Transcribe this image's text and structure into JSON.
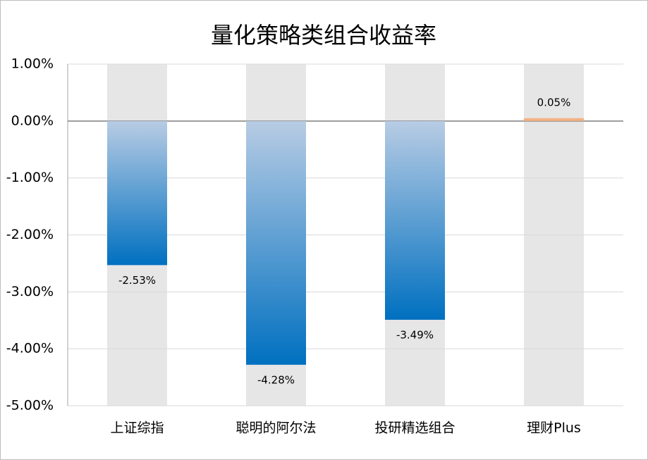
{
  "chart_data": {
    "type": "bar",
    "title": "量化策略类组合收益率",
    "categories": [
      "上证综指",
      "聪明的阿尔法",
      "投研精选组合",
      "理财Plus"
    ],
    "values": [
      -2.53,
      -4.28,
      -3.49,
      0.05
    ],
    "value_labels": [
      "-2.53%",
      "-4.28%",
      "-3.49%",
      "0.05%"
    ],
    "color": "#0070c0",
    "gradient_top_color": "#b8cce4",
    "positive_color": "#f4b183",
    "background_bar_color": "#e7e6e6",
    "ylim": [
      -5,
      1
    ],
    "yticks": [
      {
        "value": 1,
        "label": "1.00%"
      },
      {
        "value": 0,
        "label": "0.00%"
      },
      {
        "value": -1,
        "label": "-1.00%"
      },
      {
        "value": -2,
        "label": "-2.00%"
      },
      {
        "value": -3,
        "label": "-3.00%"
      },
      {
        "value": -4,
        "label": "-4.00%"
      },
      {
        "value": -5,
        "label": "-5.00%"
      }
    ],
    "grid": true
  }
}
